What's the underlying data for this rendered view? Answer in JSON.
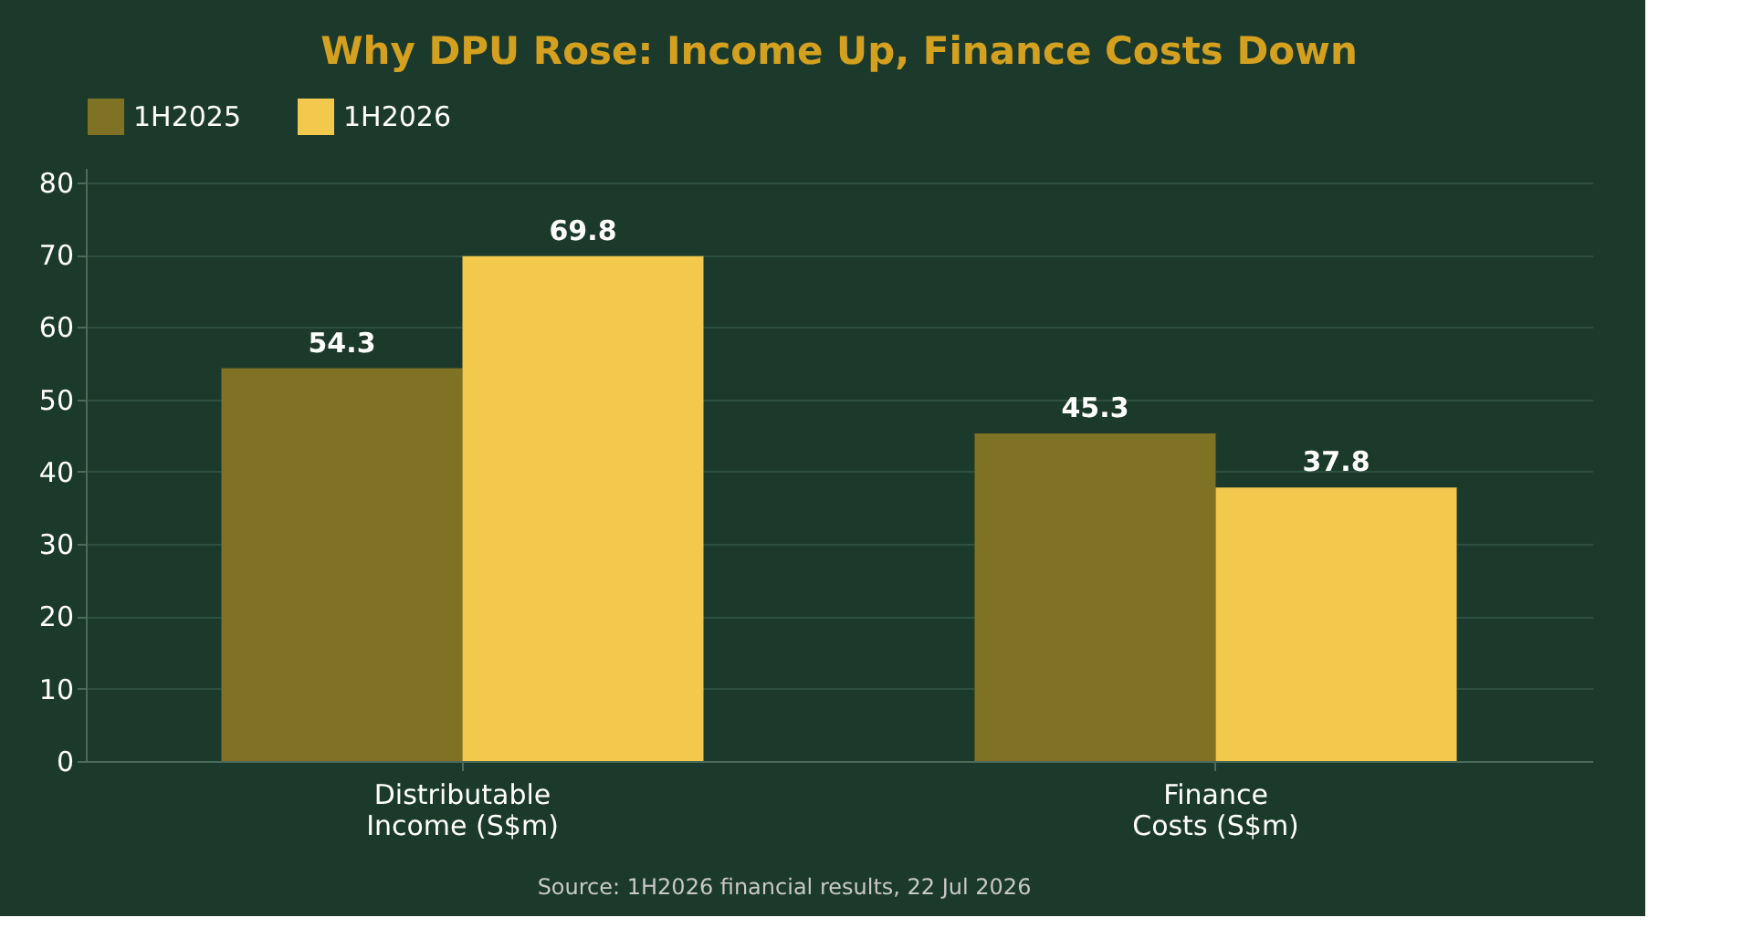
{
  "chart_data": {
    "type": "bar",
    "title": "Why DPU Rose: Income Up, Finance Costs Down",
    "categories": [
      "Distributable Income (S$m)",
      "Finance Costs (S$m)"
    ],
    "series": [
      {
        "name": "1H2025",
        "color": "#807224",
        "values": [
          54.3,
          45.3
        ]
      },
      {
        "name": "1H2026",
        "color": "#f2c94c",
        "values": [
          69.8,
          37.8
        ]
      }
    ],
    "ylim": [
      0,
      82
    ],
    "yticks": [
      0,
      10,
      20,
      30,
      40,
      50,
      60,
      70,
      80
    ],
    "grid": "y",
    "legend": "top",
    "data_labels": true,
    "annotations": [
      "Source: 1H2026 financial results, 22 Jul 2026"
    ]
  }
}
